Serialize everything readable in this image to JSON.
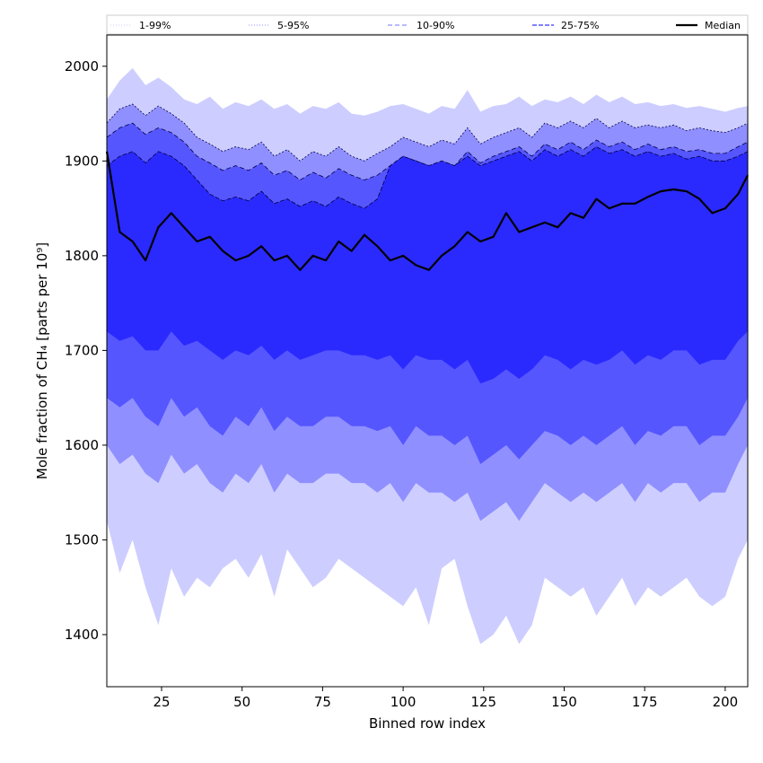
{
  "chart_data": {
    "type": "area",
    "title": "",
    "xlabel": "Binned row index",
    "ylabel": "Mole fraction of CH₄ [parts per 10⁹]",
    "xlim": [
      8,
      207
    ],
    "ylim": [
      1345,
      2033
    ],
    "x_ticks": [
      25,
      50,
      75,
      100,
      125,
      150,
      175,
      200
    ],
    "y_ticks": [
      1400,
      1500,
      1600,
      1700,
      1800,
      1900,
      2000
    ],
    "grid": false,
    "legend_position": "top",
    "colors": {
      "band_1_99": "#cdcdff",
      "band_5_95": "#8f8fff",
      "band_10_90": "#5656ff",
      "band_25_75": "#2a2aff",
      "median": "#000000"
    },
    "legend": [
      {
        "label": "1-99%",
        "style": "dotted-thin"
      },
      {
        "label": "5-95%",
        "style": "dotted"
      },
      {
        "label": "10-90%",
        "style": "dashed-light"
      },
      {
        "label": "25-75%",
        "style": "dashed"
      },
      {
        "label": "Median",
        "style": "solid"
      }
    ],
    "x": [
      8,
      12,
      16,
      20,
      24,
      28,
      32,
      36,
      40,
      44,
      48,
      52,
      56,
      60,
      64,
      68,
      72,
      76,
      80,
      84,
      88,
      92,
      96,
      100,
      104,
      108,
      112,
      116,
      120,
      124,
      128,
      132,
      136,
      140,
      144,
      148,
      152,
      156,
      160,
      164,
      168,
      172,
      176,
      180,
      184,
      188,
      192,
      196,
      200,
      204,
      207
    ],
    "series": [
      {
        "name": "1-99%",
        "upper": [
          1965,
          1985,
          1998,
          1980,
          1988,
          1978,
          1965,
          1960,
          1968,
          1955,
          1962,
          1958,
          1965,
          1955,
          1960,
          1950,
          1958,
          1955,
          1962,
          1950,
          1948,
          1952,
          1958,
          1960,
          1955,
          1950,
          1958,
          1955,
          1975,
          1952,
          1958,
          1960,
          1968,
          1958,
          1965,
          1962,
          1968,
          1960,
          1970,
          1962,
          1968,
          1960,
          1962,
          1958,
          1960,
          1956,
          1958,
          1955,
          1952,
          1956,
          1958
        ],
        "lower": [
          1520,
          1465,
          1500,
          1450,
          1410,
          1470,
          1440,
          1460,
          1450,
          1470,
          1480,
          1460,
          1485,
          1440,
          1490,
          1470,
          1450,
          1460,
          1480,
          1470,
          1460,
          1450,
          1440,
          1430,
          1450,
          1410,
          1470,
          1480,
          1430,
          1390,
          1400,
          1420,
          1390,
          1410,
          1460,
          1450,
          1440,
          1450,
          1420,
          1440,
          1460,
          1430,
          1450,
          1440,
          1450,
          1460,
          1440,
          1430,
          1440,
          1480,
          1500
        ]
      },
      {
        "name": "5-95%",
        "upper": [
          1940,
          1955,
          1960,
          1948,
          1958,
          1950,
          1940,
          1925,
          1918,
          1910,
          1915,
          1912,
          1920,
          1905,
          1912,
          1900,
          1910,
          1905,
          1915,
          1905,
          1900,
          1908,
          1915,
          1925,
          1920,
          1915,
          1922,
          1918,
          1935,
          1918,
          1925,
          1930,
          1935,
          1925,
          1940,
          1935,
          1942,
          1935,
          1945,
          1935,
          1942,
          1935,
          1938,
          1935,
          1938,
          1932,
          1935,
          1932,
          1930,
          1935,
          1940
        ],
        "lower": [
          1600,
          1580,
          1590,
          1570,
          1560,
          1590,
          1570,
          1580,
          1560,
          1550,
          1570,
          1560,
          1580,
          1550,
          1570,
          1560,
          1560,
          1570,
          1570,
          1560,
          1560,
          1550,
          1560,
          1540,
          1560,
          1550,
          1550,
          1540,
          1550,
          1520,
          1530,
          1540,
          1520,
          1540,
          1560,
          1550,
          1540,
          1550,
          1540,
          1550,
          1560,
          1540,
          1560,
          1550,
          1560,
          1560,
          1540,
          1550,
          1550,
          1580,
          1600
        ]
      },
      {
        "name": "10-90%",
        "upper": [
          1925,
          1935,
          1940,
          1928,
          1935,
          1930,
          1920,
          1905,
          1898,
          1890,
          1895,
          1890,
          1898,
          1885,
          1890,
          1880,
          1888,
          1882,
          1892,
          1885,
          1880,
          1885,
          1895,
          1905,
          1900,
          1895,
          1900,
          1895,
          1910,
          1898,
          1905,
          1910,
          1915,
          1905,
          1918,
          1912,
          1920,
          1912,
          1922,
          1915,
          1920,
          1912,
          1918,
          1912,
          1915,
          1910,
          1912,
          1908,
          1908,
          1915,
          1920
        ],
        "lower": [
          1650,
          1640,
          1650,
          1630,
          1620,
          1650,
          1630,
          1640,
          1620,
          1610,
          1630,
          1620,
          1640,
          1615,
          1630,
          1620,
          1620,
          1630,
          1630,
          1620,
          1620,
          1615,
          1620,
          1600,
          1620,
          1610,
          1610,
          1600,
          1610,
          1580,
          1590,
          1600,
          1585,
          1600,
          1615,
          1610,
          1600,
          1610,
          1600,
          1610,
          1620,
          1600,
          1615,
          1610,
          1620,
          1620,
          1600,
          1610,
          1610,
          1630,
          1650
        ]
      },
      {
        "name": "25-75%",
        "upper": [
          1895,
          1905,
          1910,
          1898,
          1910,
          1905,
          1895,
          1880,
          1865,
          1858,
          1862,
          1858,
          1868,
          1855,
          1860,
          1852,
          1858,
          1852,
          1862,
          1855,
          1850,
          1860,
          1895,
          1905,
          1900,
          1895,
          1900,
          1895,
          1905,
          1895,
          1900,
          1905,
          1910,
          1900,
          1912,
          1905,
          1912,
          1905,
          1915,
          1908,
          1912,
          1905,
          1910,
          1905,
          1908,
          1902,
          1905,
          1900,
          1900,
          1905,
          1910
        ],
        "lower": [
          1720,
          1710,
          1715,
          1700,
          1700,
          1720,
          1705,
          1710,
          1700,
          1690,
          1700,
          1695,
          1705,
          1690,
          1700,
          1690,
          1695,
          1700,
          1700,
          1695,
          1695,
          1690,
          1695,
          1680,
          1695,
          1690,
          1690,
          1680,
          1690,
          1665,
          1670,
          1680,
          1670,
          1680,
          1695,
          1690,
          1680,
          1690,
          1685,
          1690,
          1700,
          1685,
          1695,
          1690,
          1700,
          1700,
          1685,
          1690,
          1690,
          1710,
          1720
        ]
      },
      {
        "name": "Median",
        "values": [
          1910,
          1825,
          1815,
          1795,
          1830,
          1845,
          1830,
          1815,
          1820,
          1805,
          1795,
          1800,
          1810,
          1795,
          1800,
          1785,
          1800,
          1795,
          1815,
          1805,
          1822,
          1810,
          1795,
          1800,
          1790,
          1785,
          1800,
          1810,
          1825,
          1815,
          1820,
          1845,
          1825,
          1830,
          1835,
          1830,
          1845,
          1840,
          1860,
          1850,
          1855,
          1855,
          1862,
          1868,
          1870,
          1868,
          1860,
          1845,
          1850,
          1865,
          1885
        ]
      }
    ]
  }
}
